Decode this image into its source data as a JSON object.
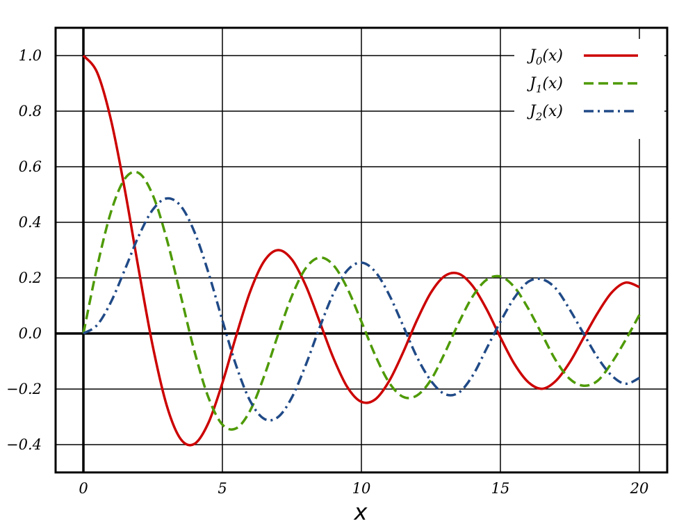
{
  "chart_data": {
    "type": "line",
    "title": "",
    "xlabel": "x",
    "ylabel": "",
    "xlim": [
      -1,
      21
    ],
    "ylim": [
      -0.5,
      1.1
    ],
    "x_ticks": [
      0,
      5,
      10,
      15,
      20
    ],
    "x_tick_labels": [
      "0",
      "5",
      "10",
      "15",
      "20"
    ],
    "y_ticks": [
      -0.4,
      -0.2,
      0.0,
      0.2,
      0.4,
      0.6,
      0.8,
      1.0
    ],
    "y_tick_labels": [
      "−0.4",
      "−0.2",
      "0.0",
      "0.2",
      "0.4",
      "0.6",
      "0.8",
      "1.0"
    ],
    "grid": true,
    "legend_position": "top-right",
    "x": [
      0,
      0.5,
      1,
      1.5,
      2,
      2.5,
      3,
      3.5,
      4,
      4.5,
      5,
      5.5,
      6,
      6.5,
      7,
      7.5,
      8,
      8.5,
      9,
      9.5,
      10,
      10.5,
      11,
      11.5,
      12,
      12.5,
      13,
      13.5,
      14,
      14.5,
      15,
      15.5,
      16,
      16.5,
      17,
      17.5,
      18,
      18.5,
      19,
      19.5,
      20
    ],
    "series": [
      {
        "name": "J",
        "subscript": "0",
        "suffix": "(x)",
        "color": "#cc0000",
        "dash": "",
        "values": [
          1.0,
          0.938,
          0.765,
          0.512,
          0.224,
          -0.048,
          -0.26,
          -0.38,
          -0.397,
          -0.321,
          -0.178,
          -0.007,
          0.151,
          0.26,
          0.3,
          0.266,
          0.172,
          0.042,
          -0.09,
          -0.194,
          -0.246,
          -0.237,
          -0.171,
          -0.068,
          0.048,
          0.147,
          0.207,
          0.215,
          0.171,
          0.088,
          -0.014,
          -0.109,
          -0.175,
          -0.199,
          -0.17,
          -0.103,
          -0.014,
          0.074,
          0.147,
          0.183,
          0.167
        ]
      },
      {
        "name": "J",
        "subscript": "1",
        "suffix": "(x)",
        "color": "#4e9a06",
        "dash": "14,7",
        "values": [
          0.0,
          0.242,
          0.44,
          0.558,
          0.577,
          0.497,
          0.339,
          0.137,
          -0.066,
          -0.231,
          -0.328,
          -0.341,
          -0.277,
          -0.154,
          -0.005,
          0.135,
          0.235,
          0.273,
          0.245,
          0.161,
          0.043,
          -0.079,
          -0.177,
          -0.228,
          -0.223,
          -0.167,
          -0.07,
          0.038,
          0.133,
          0.193,
          0.205,
          0.167,
          0.09,
          -0.004,
          -0.098,
          -0.164,
          -0.188,
          -0.17,
          -0.106,
          -0.024,
          0.067
        ]
      },
      {
        "name": "J",
        "subscript": "2",
        "suffix": "(x)",
        "color": "#204a87",
        "dash": "14,6,3,6",
        "values": [
          0.0,
          0.031,
          0.115,
          0.232,
          0.353,
          0.446,
          0.486,
          0.459,
          0.364,
          0.218,
          0.047,
          -0.117,
          -0.243,
          -0.307,
          -0.301,
          -0.23,
          -0.113,
          0.022,
          0.145,
          0.228,
          0.255,
          0.222,
          0.139,
          0.028,
          -0.085,
          -0.17,
          -0.218,
          -0.213,
          -0.152,
          -0.055,
          0.042,
          0.128,
          0.186,
          0.195,
          0.161,
          0.085,
          -0.002,
          -0.087,
          -0.151,
          -0.181,
          -0.16
        ]
      }
    ]
  }
}
